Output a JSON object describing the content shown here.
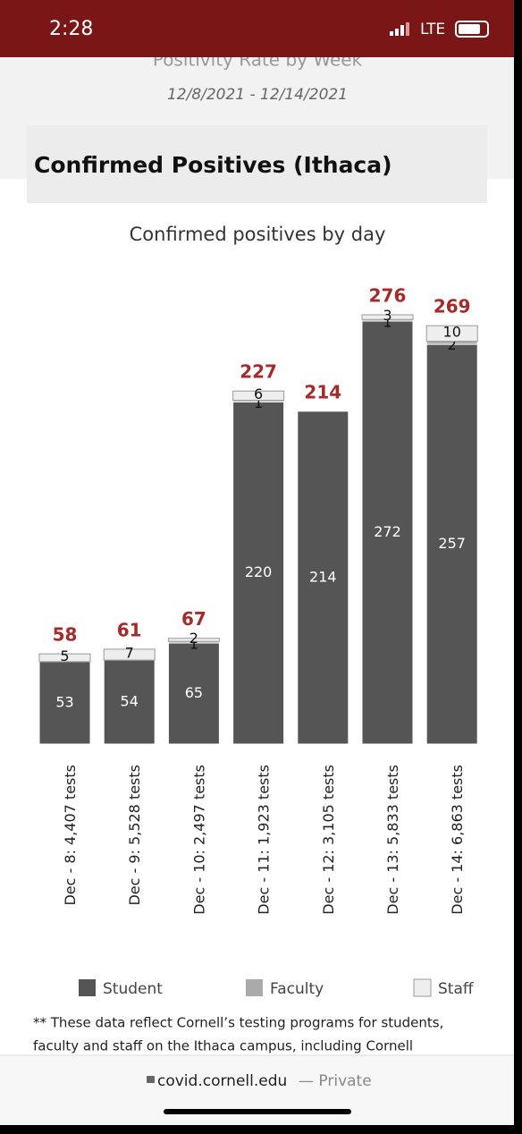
{
  "status_bar": {
    "time": "2:28",
    "network": "LTE"
  },
  "header": {
    "heading": "Positivity Rate by Week",
    "date_range": "12/8/2021 - 12/14/2021"
  },
  "section_title": "Confirmed Positives (Ithaca)",
  "chart_data": {
    "type": "bar",
    "stacked": true,
    "title": "Confirmed positives by day",
    "categories": [
      "Dec - 8: 4,407 tests",
      "Dec - 9: 5,528 tests",
      "Dec - 10: 2,497 tests",
      "Dec - 11: 1,923 tests",
      "Dec - 12: 3,105 tests",
      "Dec - 13: 5,833 tests",
      "Dec - 14: 6,863 tests"
    ],
    "series": [
      {
        "name": "Student",
        "color": "#555555",
        "values": [
          53,
          54,
          65,
          220,
          214,
          272,
          257
        ]
      },
      {
        "name": "Faculty",
        "color": "#aaaaaa",
        "values": [
          0,
          0,
          1,
          1,
          0,
          1,
          2
        ]
      },
      {
        "name": "Staff",
        "color": "#eeeeee",
        "values": [
          5,
          7,
          2,
          6,
          0,
          3,
          10
        ]
      }
    ],
    "totals": [
      58,
      61,
      67,
      227,
      214,
      276,
      269
    ],
    "total_color": "#a52a2a"
  },
  "footnote": [
    "** These data reflect Cornell’s testing programs for students,",
    "faculty and staff on the Ithaca campus, including Cornell"
  ],
  "browser": {
    "url": "covid.cornell.edu",
    "status": "— Private"
  }
}
